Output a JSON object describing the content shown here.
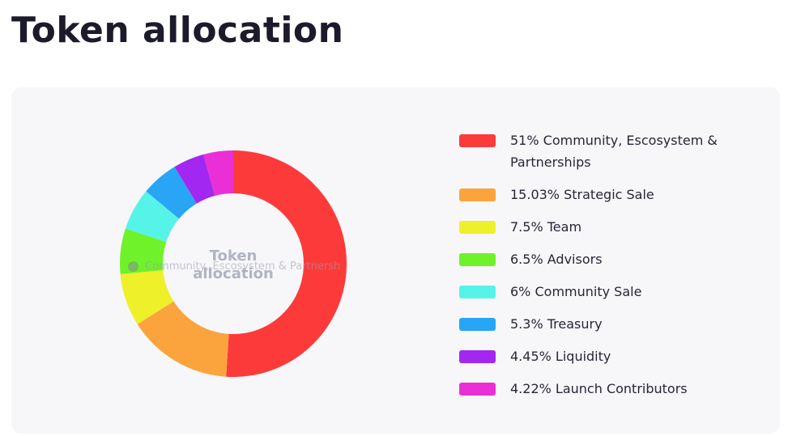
{
  "chart_data": {
    "type": "donut",
    "title": "Token allocation",
    "center_label": "Token allocation",
    "tooltip": "Community, Escosystem & Partnersh",
    "categories": [
      "Community, Escosystem & Partnerships",
      "Strategic Sale",
      "Team",
      "Advisors",
      "Community Sale",
      "Treasury",
      "Liquidity",
      "Launch Contributors"
    ],
    "values": [
      51,
      15.03,
      7.5,
      6.5,
      6,
      5.3,
      4.45,
      4.22
    ],
    "value_labels": [
      "51%",
      "15.03%",
      "7.5%",
      "6.5%",
      "6%",
      "5.3%",
      "4.45%",
      "4.22%"
    ],
    "colors": [
      "#fd3a3a",
      "#fba43e",
      "#eef02a",
      "#6ff22a",
      "#56f4e8",
      "#28a5f5",
      "#a227f0",
      "#ea2fd6"
    ]
  }
}
